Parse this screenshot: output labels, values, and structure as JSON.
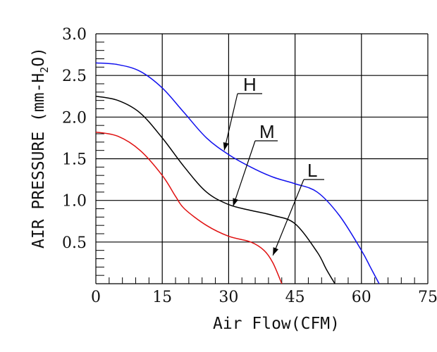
{
  "chart_data": {
    "type": "line",
    "title": "",
    "xlabel": "Air Flow(CFM)",
    "ylabel": "AIR PRESSURE (mm-H2O)",
    "ylabel_parts": {
      "before": "AIR PRESSURE (mm-H",
      "subscript": "2",
      "after": "O)"
    },
    "xlim": [
      0,
      75
    ],
    "ylim": [
      0,
      3.0
    ],
    "x_ticks": [
      0,
      15,
      30,
      45,
      60,
      75
    ],
    "x_tick_labels": [
      "0",
      "15",
      "30",
      "45",
      "60",
      "75"
    ],
    "y_ticks": [
      0.5,
      1.0,
      1.5,
      2.0,
      2.5,
      3.0
    ],
    "y_tick_labels": [
      "0.5",
      "1.0",
      "1.5",
      "2.0",
      "2.5",
      "3.0"
    ],
    "grid": true,
    "legend": "none",
    "series": [
      {
        "name": "H",
        "color": "#1010ee",
        "x": [
          0,
          5,
          10,
          15,
          20,
          25,
          30,
          35,
          40,
          45,
          50,
          55,
          60,
          62,
          64
        ],
        "y": [
          2.65,
          2.63,
          2.55,
          2.35,
          2.05,
          1.75,
          1.55,
          1.4,
          1.28,
          1.2,
          1.1,
          0.82,
          0.4,
          0.2,
          0.0
        ]
      },
      {
        "name": "M",
        "color": "#000000",
        "x": [
          0,
          5,
          10,
          15,
          20,
          25,
          30,
          35,
          40,
          45,
          50,
          52,
          54
        ],
        "y": [
          2.25,
          2.2,
          2.05,
          1.75,
          1.4,
          1.1,
          0.95,
          0.88,
          0.82,
          0.72,
          0.38,
          0.18,
          0.0
        ]
      },
      {
        "name": "L",
        "color": "#e01010",
        "x": [
          0,
          5,
          10,
          15,
          18,
          20,
          25,
          30,
          35,
          38,
          40,
          42
        ],
        "y": [
          1.82,
          1.77,
          1.6,
          1.3,
          1.05,
          0.9,
          0.7,
          0.57,
          0.5,
          0.4,
          0.25,
          0.0
        ]
      }
    ],
    "annotations": [
      {
        "text": "H",
        "points_to": {
          "x": 29,
          "y": 1.6
        }
      },
      {
        "text": "M",
        "points_to": {
          "x": 31,
          "y": 0.93
        }
      },
      {
        "text": "L",
        "points_to": {
          "x": 40,
          "y": 0.34
        }
      }
    ]
  }
}
